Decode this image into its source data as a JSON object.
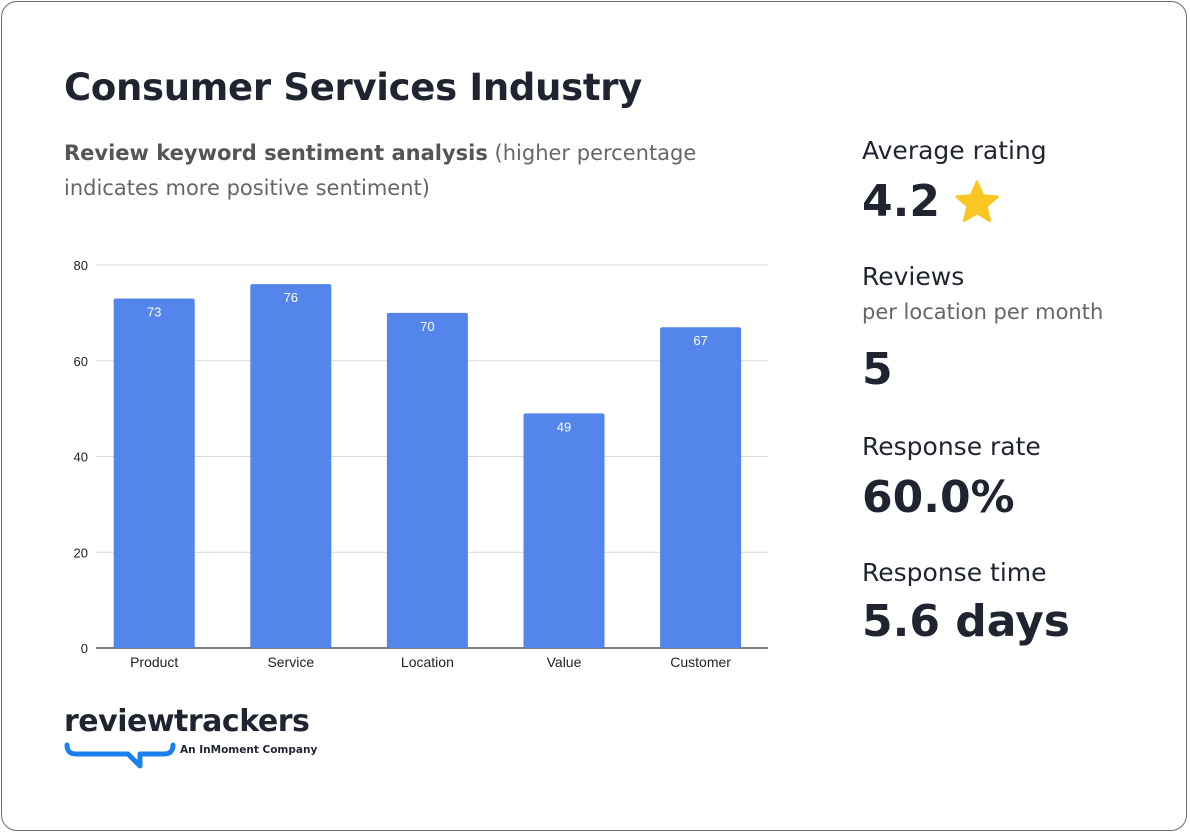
{
  "title": "Consumer Services Industry",
  "subtitle_bold": "Review keyword sentiment analysis",
  "subtitle_rest": " (higher percentage indicates more positive sentiment)",
  "stats": {
    "avg_label": "Average rating",
    "avg_value": "4.2",
    "reviews_label": "Reviews",
    "reviews_sub": "per location per month",
    "reviews_value": "5",
    "response_rate_label": "Response rate",
    "response_rate_value": "60.0%",
    "response_time_label": "Response time",
    "response_time_value": "5.6 days"
  },
  "logo": {
    "name": "reviewtrackers",
    "tagline": "An InMoment Company"
  },
  "colors": {
    "bar": "#5485eb",
    "star": "#f9c623",
    "logo_accent": "#1b7ff0"
  },
  "chart_data": {
    "type": "bar",
    "categories": [
      "Product",
      "Service",
      "Location",
      "Value",
      "Customer"
    ],
    "values": [
      73,
      76,
      70,
      49,
      67
    ],
    "ylim": [
      0,
      80
    ],
    "yticks": [
      0,
      20,
      40,
      60,
      80
    ],
    "grid": true,
    "data_labels": true
  }
}
